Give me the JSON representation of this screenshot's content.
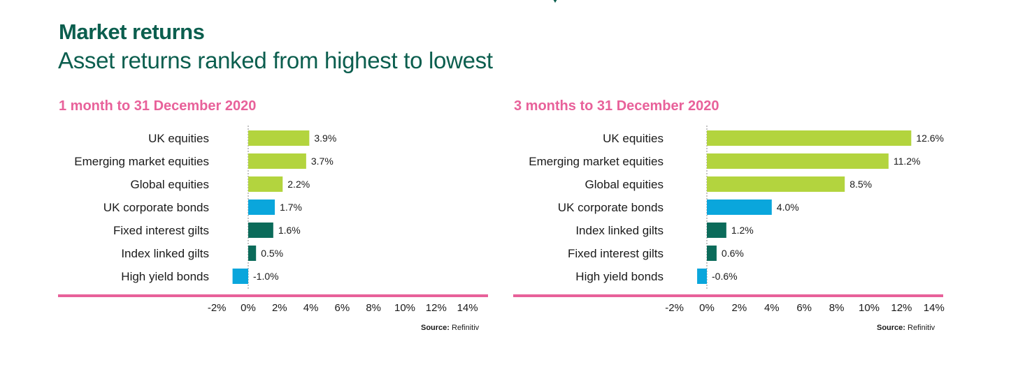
{
  "header": {
    "title": "Market returns",
    "subtitle": "Asset returns ranked from highest to lowest"
  },
  "colors": {
    "equities": "#b3d43e",
    "bonds": "#0aa6dc",
    "gilts": "#0b6b5a",
    "axis_line": "#e8619a",
    "title": "#0b5e4e",
    "panel_title": "#e8619a"
  },
  "chart_data": [
    {
      "type": "bar",
      "orientation": "horizontal",
      "title": "1 month to 31 December 2020",
      "categories": [
        "UK equities",
        "Emerging market equities",
        "Global equities",
        "UK corporate bonds",
        "Fixed interest gilts",
        "Index linked gilts",
        "High yield bonds"
      ],
      "values": [
        3.9,
        3.7,
        2.2,
        1.7,
        1.6,
        0.5,
        -1.0
      ],
      "value_labels": [
        "3.9%",
        "3.7%",
        "2.2%",
        "1.7%",
        "1.6%",
        "0.5%",
        "-1.0%"
      ],
      "bar_colors": [
        "#b3d43e",
        "#b3d43e",
        "#b3d43e",
        "#0aa6dc",
        "#0b6b5a",
        "#0b6b5a",
        "#0aa6dc"
      ],
      "xlim": [
        -2,
        14
      ],
      "xticks": [
        -2,
        0,
        2,
        4,
        6,
        8,
        10,
        12,
        14
      ],
      "xtick_labels": [
        "-2%",
        "0%",
        "2%",
        "4%",
        "6%",
        "8%",
        "10%",
        "12%",
        "14%"
      ],
      "source_label": "Source:",
      "source": "Refinitiv"
    },
    {
      "type": "bar",
      "orientation": "horizontal",
      "title": "3 months to 31 December 2020",
      "categories": [
        "UK equities",
        "Emerging market equities",
        "Global equities",
        "UK corporate bonds",
        "Index linked gilts",
        "Fixed interest gilts",
        "High yield bonds"
      ],
      "values": [
        12.6,
        11.2,
        8.5,
        4.0,
        1.2,
        0.6,
        -0.6
      ],
      "value_labels": [
        "12.6%",
        "11.2%",
        "8.5%",
        "4.0%",
        "1.2%",
        "0.6%",
        "-0.6%"
      ],
      "bar_colors": [
        "#b3d43e",
        "#b3d43e",
        "#b3d43e",
        "#0aa6dc",
        "#0b6b5a",
        "#0b6b5a",
        "#0aa6dc"
      ],
      "xlim": [
        -2,
        14
      ],
      "xticks": [
        -2,
        0,
        2,
        4,
        6,
        8,
        10,
        12,
        14
      ],
      "xtick_labels": [
        "-2%",
        "0%",
        "2%",
        "4%",
        "6%",
        "8%",
        "10%",
        "12%",
        "14%"
      ],
      "source_label": "Source:",
      "source": "Refinitiv"
    }
  ]
}
